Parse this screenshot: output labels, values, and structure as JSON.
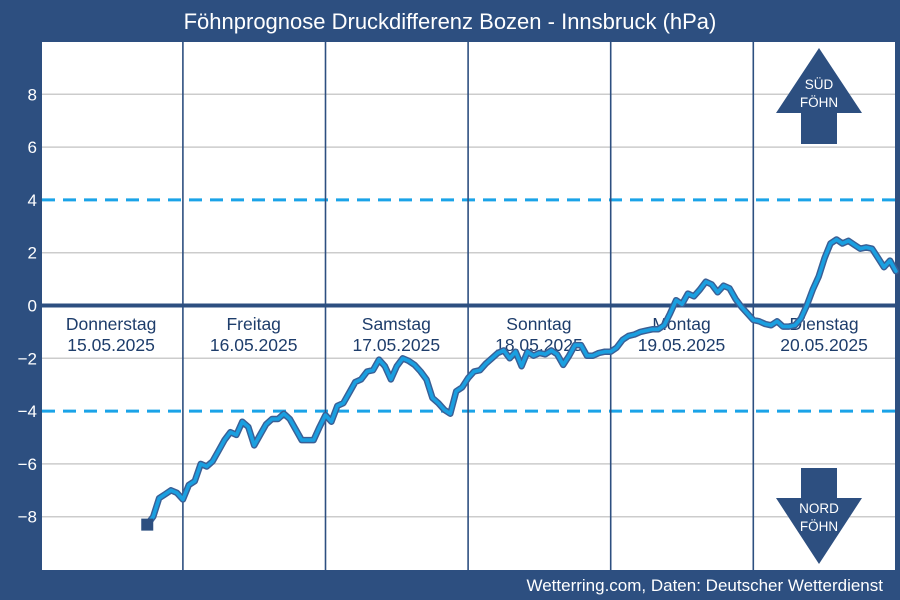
{
  "chart_data": {
    "type": "line",
    "title": "Föhnprognose Druckdifferenz Bozen - Innsbruck (hPa)",
    "footer": "Wetterring.com, Daten: Deutscher Wetterdienst",
    "ylim": [
      -10,
      10
    ],
    "yticks": [
      8,
      6,
      4,
      2,
      0,
      -2,
      -4,
      -6,
      -8
    ],
    "ytick_labels": [
      "8",
      "6",
      "4",
      "2",
      "0",
      "−2",
      "−4",
      "−6",
      "−8"
    ],
    "grid": true,
    "thresholds": [
      4,
      -4
    ],
    "x_unit": "hours since 15.05.2025 00:00",
    "days": [
      {
        "name": "Donnerstag",
        "date": "15.05.2025"
      },
      {
        "name": "Freitag",
        "date": "16.05.2025"
      },
      {
        "name": "Samstag",
        "date": "17.05.2025"
      },
      {
        "name": "Sonntag",
        "date": "18.05.2025"
      },
      {
        "name": "Montag",
        "date": "19.05.2025"
      },
      {
        "name": "Dienstag",
        "date": "20.05.2025"
      }
    ],
    "indicators": [
      {
        "label_line1": "SÜD",
        "label_line2": "FÖHN",
        "direction": "up"
      },
      {
        "label_line1": "NORD",
        "label_line2": "FÖHN",
        "direction": "down"
      }
    ],
    "colors": {
      "background": "#2d4f80",
      "plot_bg": "#ffffff",
      "line": "#1a9fe0",
      "line_outline": "#3a5f95",
      "threshold": "#1aa3e8",
      "zero_line": "#2d4f80",
      "grid": "#cccccc",
      "marker": "#2d4f80",
      "arrow": "#2d4f80"
    },
    "series": [
      {
        "start_marker": {
          "x": 18,
          "y": -8.3
        },
        "points": [
          [
            18,
            -8.3
          ],
          [
            19,
            -8.0
          ],
          [
            20,
            -7.3
          ],
          [
            21,
            -7.15
          ],
          [
            22,
            -7.0
          ],
          [
            23,
            -7.1
          ],
          [
            24,
            -7.35
          ],
          [
            25,
            -6.8
          ],
          [
            26,
            -6.65
          ],
          [
            27,
            -6.0
          ],
          [
            28,
            -6.1
          ],
          [
            29,
            -5.9
          ],
          [
            30,
            -5.5
          ],
          [
            31,
            -5.1
          ],
          [
            32,
            -4.8
          ],
          [
            33,
            -4.9
          ],
          [
            34,
            -4.4
          ],
          [
            35,
            -4.6
          ],
          [
            36,
            -5.3
          ],
          [
            37,
            -4.9
          ],
          [
            38,
            -4.5
          ],
          [
            39,
            -4.3
          ],
          [
            40,
            -4.3
          ],
          [
            41,
            -4.1
          ],
          [
            42,
            -4.3
          ],
          [
            43,
            -4.7
          ],
          [
            44,
            -5.1
          ],
          [
            45,
            -5.1
          ],
          [
            46,
            -5.1
          ],
          [
            47,
            -4.6
          ],
          [
            48,
            -4.15
          ],
          [
            49,
            -4.4
          ],
          [
            50,
            -3.8
          ],
          [
            51,
            -3.7
          ],
          [
            52,
            -3.3
          ],
          [
            53,
            -2.9
          ],
          [
            54,
            -2.8
          ],
          [
            55,
            -2.5
          ],
          [
            56,
            -2.45
          ],
          [
            57,
            -2.05
          ],
          [
            58,
            -2.3
          ],
          [
            59,
            -2.8
          ],
          [
            60,
            -2.3
          ],
          [
            61,
            -2.0
          ],
          [
            62,
            -2.1
          ],
          [
            63,
            -2.25
          ],
          [
            64,
            -2.5
          ],
          [
            65,
            -2.8
          ],
          [
            66,
            -3.5
          ],
          [
            67,
            -3.7
          ],
          [
            68,
            -3.95
          ],
          [
            69,
            -4.1
          ],
          [
            70,
            -3.25
          ],
          [
            71,
            -3.1
          ],
          [
            72,
            -2.75
          ],
          [
            73,
            -2.5
          ],
          [
            74,
            -2.45
          ],
          [
            75,
            -2.2
          ],
          [
            76,
            -2.0
          ],
          [
            77,
            -1.8
          ],
          [
            78,
            -1.7
          ],
          [
            79,
            -2.0
          ],
          [
            80,
            -1.75
          ],
          [
            81,
            -2.3
          ],
          [
            82,
            -1.75
          ],
          [
            83,
            -1.9
          ],
          [
            84,
            -1.8
          ],
          [
            85,
            -1.85
          ],
          [
            86,
            -1.7
          ],
          [
            87,
            -1.85
          ],
          [
            88,
            -2.25
          ],
          [
            89,
            -1.9
          ],
          [
            90,
            -1.5
          ],
          [
            91,
            -1.5
          ],
          [
            92,
            -1.9
          ],
          [
            93,
            -1.9
          ],
          [
            94,
            -1.8
          ],
          [
            95,
            -1.75
          ],
          [
            96,
            -1.75
          ],
          [
            97,
            -1.6
          ],
          [
            98,
            -1.3
          ],
          [
            99,
            -1.15
          ],
          [
            100,
            -1.1
          ],
          [
            101,
            -1.0
          ],
          [
            102,
            -0.95
          ],
          [
            103,
            -0.9
          ],
          [
            104,
            -0.9
          ],
          [
            105,
            -0.75
          ],
          [
            106,
            -0.3
          ],
          [
            107,
            0.2
          ],
          [
            108,
            0.05
          ],
          [
            109,
            0.45
          ],
          [
            110,
            0.35
          ],
          [
            111,
            0.6
          ],
          [
            112,
            0.9
          ],
          [
            113,
            0.8
          ],
          [
            114,
            0.5
          ],
          [
            115,
            0.75
          ],
          [
            116,
            0.65
          ],
          [
            117,
            0.25
          ],
          [
            118,
            -0.05
          ],
          [
            119,
            -0.3
          ],
          [
            120,
            -0.55
          ],
          [
            121,
            -0.6
          ],
          [
            122,
            -0.7
          ],
          [
            123,
            -0.75
          ],
          [
            124,
            -0.6
          ],
          [
            125,
            -0.8
          ],
          [
            126,
            -0.8
          ],
          [
            127,
            -0.75
          ],
          [
            128,
            -0.5
          ],
          [
            129,
            0.0
          ],
          [
            130,
            0.6
          ],
          [
            131,
            1.1
          ],
          [
            132,
            1.8
          ],
          [
            133,
            2.35
          ],
          [
            134,
            2.5
          ],
          [
            135,
            2.35
          ],
          [
            136,
            2.45
          ],
          [
            137,
            2.3
          ],
          [
            138,
            2.15
          ],
          [
            139,
            2.2
          ],
          [
            140,
            2.15
          ],
          [
            141,
            1.8
          ],
          [
            142,
            1.45
          ],
          [
            143,
            1.7
          ],
          [
            144,
            1.3
          ]
        ]
      }
    ]
  }
}
